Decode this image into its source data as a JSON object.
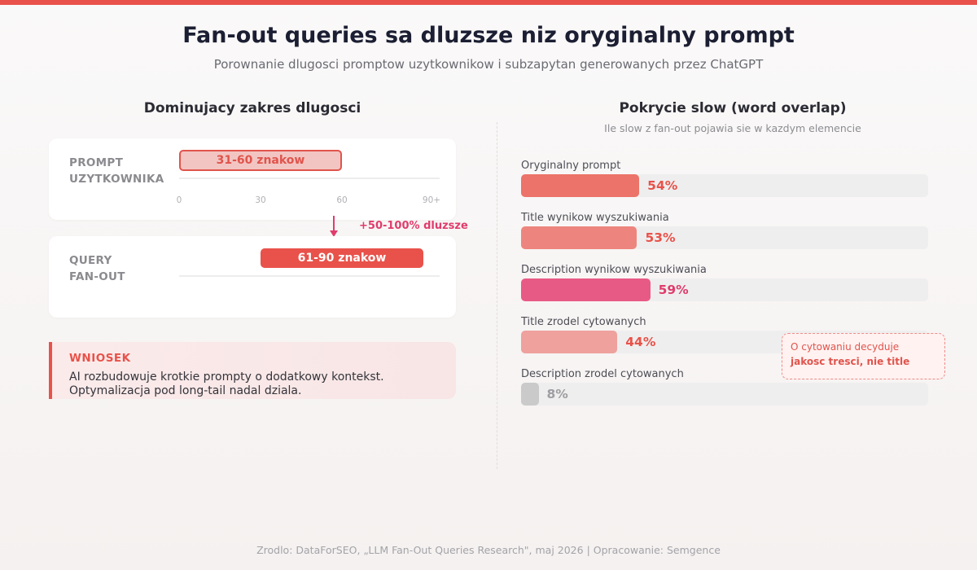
{
  "header": {
    "title": "Fan-out queries sa dluzsze niz oryginalny prompt",
    "subtitle": "Porownanie dlugosci promptow uzytkownikow i subzapytan generowanych przez ChatGPT"
  },
  "left_section": {
    "title": "Dominujacy zakres dlugosci",
    "prompt_card_label": "PROMPT\nUZYTKOWNIKA",
    "fanout_card_label": "QUERY\nFAN-OUT",
    "arrow_note": "+50-100% dluzsze",
    "conclusion": {
      "heading": "WNIOSEK",
      "line1": "AI rozbudowuje krotkie prompty o dodatkowy kontekst.",
      "line2": "Optymalizacja pod long-tail nadal dziala."
    }
  },
  "right_section": {
    "title": "Pokrycie slow (word overlap)",
    "subtitle": "Ile slow z fan-out pojawia sie w kazdym elemencie",
    "callout_line1": "O cytowaniu decyduje",
    "callout_line2": "jakosc tresci, nie title"
  },
  "footer": "Zrodlo: DataForSEO, „LLM Fan-Out Queries Research\", maj 2026 | Opracowanie: Semgence",
  "colors": {
    "accent": "#e8524a",
    "magenta": "#e03c6c"
  },
  "chart_data": [
    {
      "type": "range-bar",
      "title": "Dominujacy zakres dlugosci",
      "ticks": [
        "0",
        "30",
        "60",
        "90+"
      ],
      "xlim": [
        0,
        96
      ],
      "series": [
        {
          "name": "PROMPT UZYTKOWNIKA",
          "range": [
            0,
            60
          ],
          "label": "31-60 znakow"
        },
        {
          "name": "QUERY FAN-OUT",
          "range": [
            30,
            90
          ],
          "label": "61-90 znakow"
        }
      ]
    },
    {
      "type": "bar",
      "orientation": "horizontal",
      "title": "Pokrycie slow (word overlap)",
      "subtitle": "Ile slow z fan-out pojawia sie w kazdym elemencie",
      "xlim": [
        0,
        186
      ],
      "categories": [
        "Oryginalny prompt",
        "Title wynikow wyszukiwania",
        "Description wynikow wyszukiwania",
        "Title zrodel cytowanych",
        "Description zrodel cytowanych"
      ],
      "values": [
        54,
        53,
        59,
        44,
        8
      ],
      "value_labels": [
        "54%",
        "53%",
        "59%",
        "44%",
        "8%"
      ],
      "colors": [
        "#ec7369",
        "#ed857e",
        "#e85a86",
        "#eea19d",
        "#cacaca"
      ],
      "label_colors": [
        "#e8524a",
        "#e8524a",
        "#e03c6c",
        "#e8524a",
        "#9d9da2"
      ]
    }
  ]
}
